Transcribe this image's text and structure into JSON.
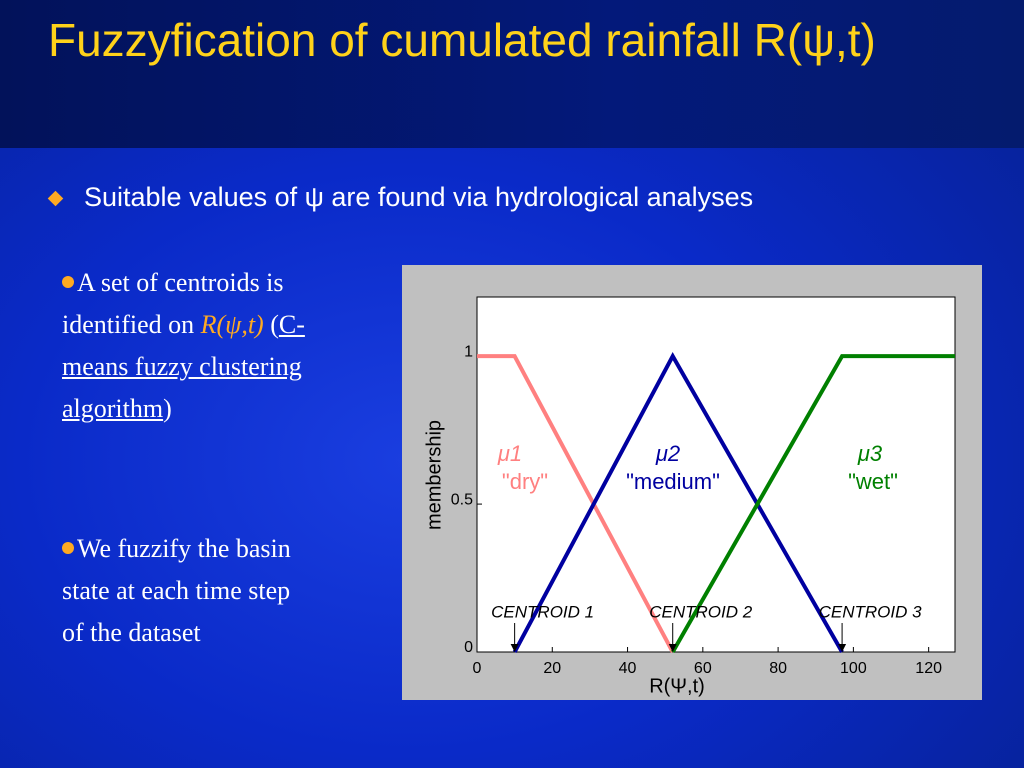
{
  "title": "Fuzzyfication of cumulated rainfall R(ψ,t)",
  "subtitle_bullet": "Suitable values of ψ are found via hydrological analyses",
  "bullets": [
    {
      "text": "A set of centroids is identified on ",
      "symbol": "R(ψ,t)",
      "open": " (",
      "link": "C-means fuzzy clustering algorithm",
      "close": ")"
    },
    {
      "text": "We fuzzify the basin state at each time step of the dataset"
    }
  ],
  "chart_data": {
    "type": "line",
    "xlabel": "R(Ψ,t)",
    "ylabel": "membership",
    "xlim": [
      0,
      127
    ],
    "ylim": [
      0,
      1.2
    ],
    "xticks": [
      0,
      20,
      40,
      60,
      80,
      100,
      120
    ],
    "yticks": [
      0,
      0.5,
      1
    ],
    "series": [
      {
        "name": "μ1",
        "label": "\"dry\"",
        "color": "#ff8080",
        "x": [
          0,
          10,
          52
        ],
        "values": [
          1,
          1,
          0
        ]
      },
      {
        "name": "μ2",
        "label": "\"medium\"",
        "color": "#0000a0",
        "x": [
          10,
          52,
          97
        ],
        "values": [
          0,
          1,
          0
        ]
      },
      {
        "name": "μ3",
        "label": "\"wet\"",
        "color": "#008000",
        "x": [
          52,
          97,
          127
        ],
        "values": [
          0,
          1,
          1
        ]
      }
    ],
    "annotations": [
      {
        "text": "CENTROID 1",
        "x": 10
      },
      {
        "text": "CENTROID 2",
        "x": 52
      },
      {
        "text": "CENTROID 3",
        "x": 97
      }
    ]
  }
}
